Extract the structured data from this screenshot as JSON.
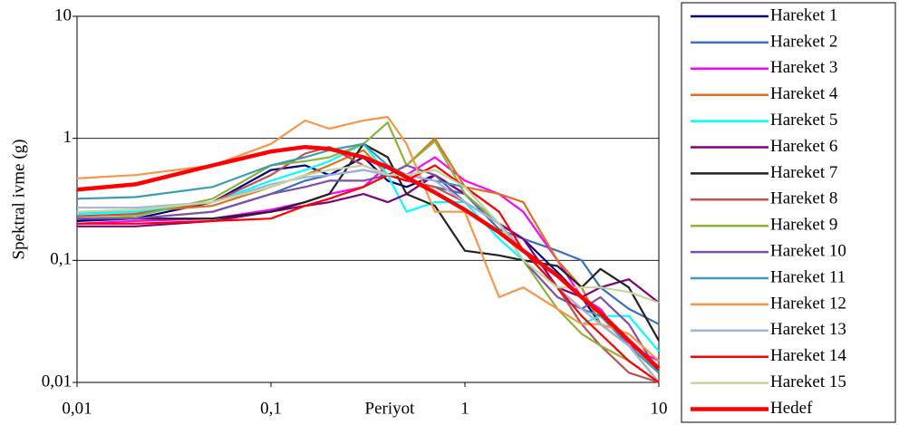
{
  "chart_data": {
    "type": "line",
    "xlabel": "Periyot",
    "ylabel": "Spektral ivme (g)",
    "xlog": true,
    "ylog": true,
    "grid": true,
    "xlim": [
      0.01,
      10
    ],
    "ylim": [
      0.01,
      10
    ],
    "xticks": [
      {
        "value": 0.01,
        "label": "0,01"
      },
      {
        "value": 0.1,
        "label": "0,1"
      },
      1,
      10
    ],
    "yticks": [
      {
        "value": 0.01,
        "label": "0,01"
      },
      {
        "value": 0.1,
        "label": "0,1"
      },
      1,
      10
    ],
    "x": [
      0.01,
      0.02,
      0.05,
      0.1,
      0.15,
      0.2,
      0.3,
      0.4,
      0.5,
      0.7,
      1,
      1.5,
      2,
      3,
      4,
      5,
      7,
      10
    ],
    "series": [
      {
        "name": "Hareket 1",
        "color": "#00008b",
        "values": [
          0.21,
          0.22,
          0.3,
          0.55,
          0.6,
          0.5,
          0.7,
          0.45,
          0.4,
          0.5,
          0.35,
          0.2,
          0.15,
          0.08,
          0.05,
          0.03,
          0.02,
          0.012
        ]
      },
      {
        "name": "Hareket 2",
        "color": "#3a6fbf",
        "values": [
          0.22,
          0.22,
          0.25,
          0.35,
          0.45,
          0.5,
          0.55,
          0.5,
          0.45,
          0.4,
          0.35,
          0.18,
          0.15,
          0.12,
          0.1,
          0.06,
          0.04,
          0.03
        ]
      },
      {
        "name": "Hareket 3",
        "color": "#ff00ff",
        "values": [
          0.2,
          0.21,
          0.22,
          0.26,
          0.3,
          0.35,
          0.4,
          0.6,
          0.5,
          0.7,
          0.45,
          0.35,
          0.25,
          0.1,
          0.05,
          0.04,
          0.02,
          0.015
        ]
      },
      {
        "name": "Hareket 4",
        "color": "#e07020",
        "values": [
          0.25,
          0.25,
          0.28,
          0.4,
          0.5,
          0.6,
          0.8,
          0.5,
          0.6,
          1.0,
          0.4,
          0.35,
          0.3,
          0.1,
          0.06,
          0.03,
          0.02,
          0.01
        ]
      },
      {
        "name": "Hareket 5",
        "color": "#00ffff",
        "values": [
          0.24,
          0.25,
          0.3,
          0.45,
          0.55,
          0.65,
          0.9,
          0.5,
          0.25,
          0.3,
          0.3,
          0.15,
          0.1,
          0.06,
          0.03,
          0.035,
          0.035,
          0.018
        ]
      },
      {
        "name": "Hareket 6",
        "color": "#800080",
        "values": [
          0.19,
          0.19,
          0.21,
          0.25,
          0.28,
          0.3,
          0.35,
          0.3,
          0.35,
          0.5,
          0.35,
          0.2,
          0.15,
          0.06,
          0.05,
          0.06,
          0.07,
          0.045
        ]
      },
      {
        "name": "Hareket 7",
        "color": "#222222",
        "values": [
          0.22,
          0.22,
          0.22,
          0.25,
          0.3,
          0.35,
          0.9,
          0.7,
          0.35,
          0.28,
          0.12,
          0.11,
          0.1,
          0.09,
          0.06,
          0.085,
          0.06,
          0.022
        ]
      },
      {
        "name": "Hareket 8",
        "color": "#c0504d",
        "values": [
          0.23,
          0.24,
          0.3,
          0.5,
          0.75,
          0.85,
          0.6,
          0.5,
          0.45,
          0.4,
          0.3,
          0.2,
          0.12,
          0.06,
          0.03,
          0.02,
          0.012,
          0.01
        ]
      },
      {
        "name": "Hareket 9",
        "color": "#8db33a",
        "values": [
          0.22,
          0.23,
          0.32,
          0.6,
          0.65,
          0.7,
          0.9,
          1.35,
          0.6,
          0.95,
          0.35,
          0.2,
          0.1,
          0.04,
          0.025,
          0.02,
          0.015,
          0.01
        ]
      },
      {
        "name": "Hareket 10",
        "color": "#7f4fa8",
        "values": [
          0.22,
          0.22,
          0.25,
          0.35,
          0.4,
          0.45,
          0.45,
          0.5,
          0.6,
          0.5,
          0.3,
          0.2,
          0.1,
          0.05,
          0.04,
          0.05,
          0.03,
          0.012
        ]
      },
      {
        "name": "Hareket 11",
        "color": "#3b9bb5",
        "values": [
          0.32,
          0.33,
          0.4,
          0.6,
          0.7,
          0.8,
          0.9,
          0.6,
          0.5,
          0.45,
          0.4,
          0.2,
          0.12,
          0.06,
          0.04,
          0.035,
          0.02,
          0.012
        ]
      },
      {
        "name": "Hareket 12",
        "color": "#f79646",
        "values": [
          0.47,
          0.5,
          0.6,
          0.9,
          1.4,
          1.2,
          1.4,
          1.5,
          0.9,
          0.25,
          0.25,
          0.05,
          0.06,
          0.04,
          0.03,
          0.03,
          0.025,
          0.015
        ]
      },
      {
        "name": "Hareket 13",
        "color": "#9fb4d8",
        "values": [
          0.27,
          0.27,
          0.3,
          0.42,
          0.48,
          0.5,
          0.55,
          0.5,
          0.5,
          0.45,
          0.3,
          0.2,
          0.12,
          0.06,
          0.04,
          0.03,
          0.02,
          0.01
        ]
      },
      {
        "name": "Hareket 14",
        "color": "#ff0000",
        "values": [
          0.2,
          0.2,
          0.21,
          0.22,
          0.28,
          0.32,
          0.4,
          0.5,
          0.45,
          0.6,
          0.4,
          0.25,
          0.12,
          0.06,
          0.035,
          0.025,
          0.015,
          0.01
        ]
      },
      {
        "name": "Hareket 15",
        "color": "#c4d6a0",
        "values": [
          0.25,
          0.26,
          0.3,
          0.4,
          0.5,
          0.55,
          0.6,
          0.5,
          0.5,
          0.55,
          0.4,
          0.2,
          0.1,
          0.06,
          0.06,
          0.06,
          0.055,
          0.045
        ]
      },
      {
        "name": "Hedef",
        "color": "#ff0000",
        "values": [
          0.38,
          0.42,
          0.6,
          0.78,
          0.85,
          0.82,
          0.7,
          0.58,
          0.48,
          0.36,
          0.26,
          0.17,
          0.12,
          0.075,
          0.05,
          0.037,
          0.022,
          0.013
        ]
      }
    ]
  }
}
